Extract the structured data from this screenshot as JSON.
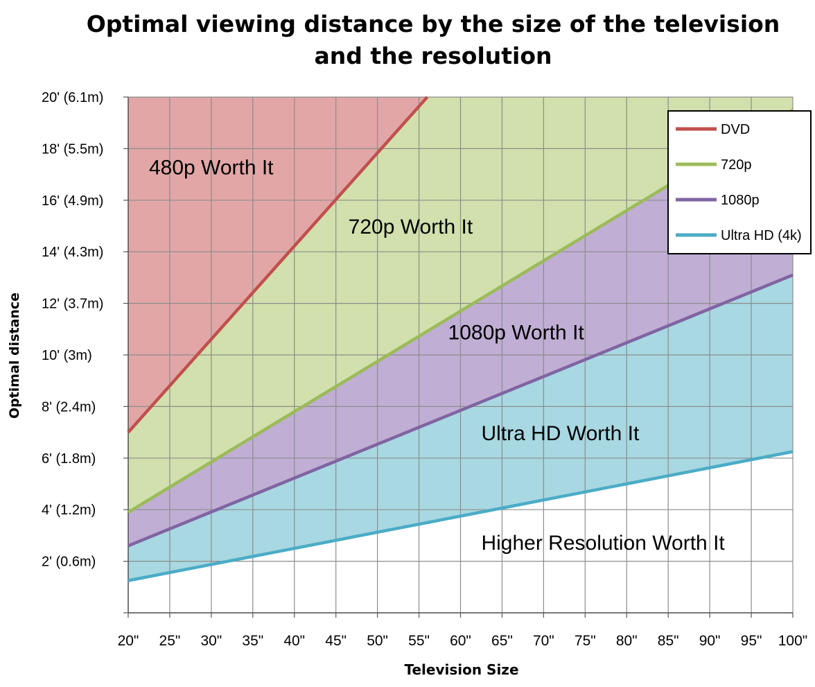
{
  "chart_data": {
    "type": "area",
    "title_line1": "Optimal viewing distance by the size of the television",
    "title_line2": "and the resolution",
    "xlabel": "Television Size",
    "ylabel": "Optimal distance",
    "x": [
      20,
      100
    ],
    "x_tick_labels": [
      "20\"",
      "25\"",
      "30\"",
      "35\"",
      "40\"",
      "45\"",
      "50\"",
      "55\"",
      "60\"",
      "65\"",
      "70\"",
      "75\"",
      "80\"",
      "85\"",
      "90\"",
      "95\"",
      "100\""
    ],
    "y_tick_labels": [
      "20' (6.1m)",
      "18' (5.5m)",
      "16' (4.9m)",
      "14' (4.3m)",
      "12' (3.7m)",
      "10' (3m)",
      "8' (2.4m)",
      "6' (1.8m)",
      "4' (1.2m)",
      "2' (0.6m)"
    ],
    "xlim": [
      20,
      100
    ],
    "ylim": [
      0,
      20
    ],
    "grid": true,
    "legend_position": "top-right",
    "series": [
      {
        "name": "DVD",
        "color": "#c0504d",
        "fill": "#e2a6a6",
        "x": [
          20,
          56
        ],
        "y": [
          7.0,
          20.0
        ]
      },
      {
        "name": "720p",
        "color": "#9bbb59",
        "fill": "#d1e0ac",
        "x": [
          20,
          100
        ],
        "y": [
          3.9,
          19.5
        ]
      },
      {
        "name": "1080p",
        "color": "#8064a2",
        "fill": "#c0aed4",
        "x": [
          20,
          100
        ],
        "y": [
          2.6,
          13.1
        ]
      },
      {
        "name": "Ultra HD (4k)",
        "color": "#4bacc6",
        "fill": "#a8d8e2",
        "x": [
          20,
          100
        ],
        "y": [
          1.25,
          6.25
        ]
      }
    ],
    "region_labels": [
      {
        "text": "480p Worth It",
        "x": 22.5,
        "y": 17.0
      },
      {
        "text": "720p Worth It",
        "x": 46.5,
        "y": 14.7
      },
      {
        "text": "1080p Worth It",
        "x": 58.5,
        "y": 10.6
      },
      {
        "text": "Ultra HD Worth It",
        "x": 62.5,
        "y": 6.7
      },
      {
        "text": "Higher Resolution Worth It",
        "x": 62.5,
        "y": 2.45
      }
    ]
  }
}
